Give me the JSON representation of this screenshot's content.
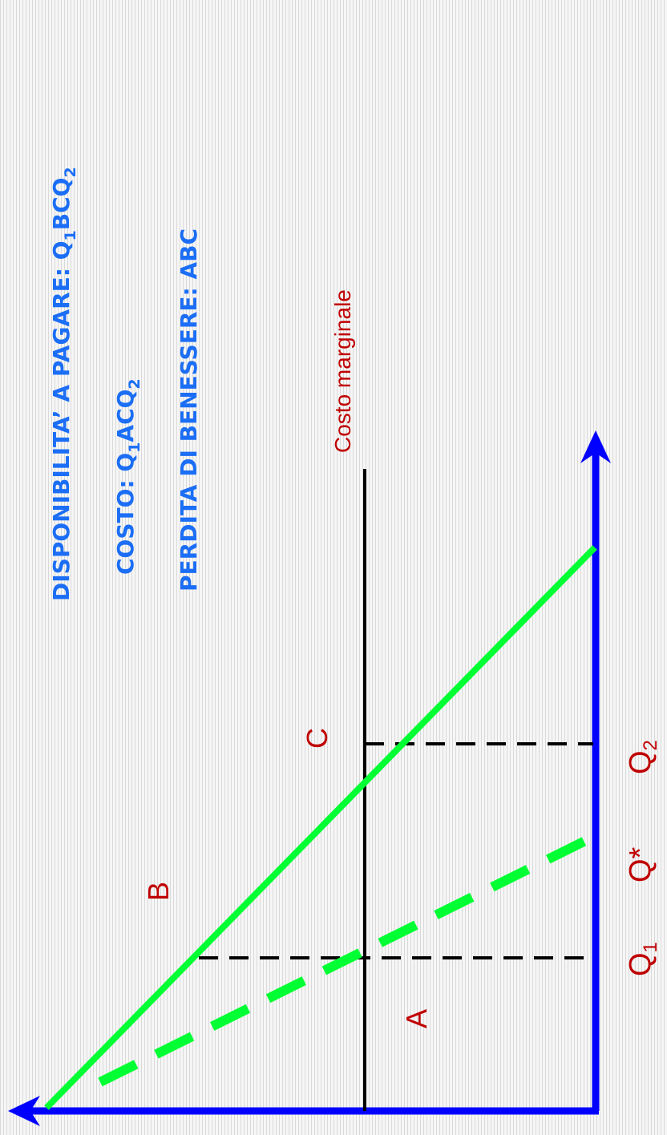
{
  "annotations": {
    "willingness": {
      "prefix": "DISPONIBILITA’ A PAGARE: Q",
      "s1": "1",
      "mid": "BCQ",
      "s2": "2"
    },
    "cost": {
      "prefix": "COSTO: Q",
      "s1": "1",
      "mid": "ACQ",
      "s2": "2"
    },
    "welfare_loss": "PERDITA DI BENESSERE: ABC"
  },
  "labels": {
    "marginal_cost": "Costo marginale",
    "point_a": "A",
    "point_b": "B",
    "point_c": "C",
    "q1": {
      "base": "Q",
      "sub": "1"
    },
    "qstar": "Q*",
    "q2": {
      "base": "Q",
      "sub": "2"
    }
  },
  "colors": {
    "axis": "#0000ff",
    "demand": "#00ff33",
    "marginal_cost": "#000000",
    "label_red": "#c00000",
    "label_blue": "#1b6ef5"
  }
}
